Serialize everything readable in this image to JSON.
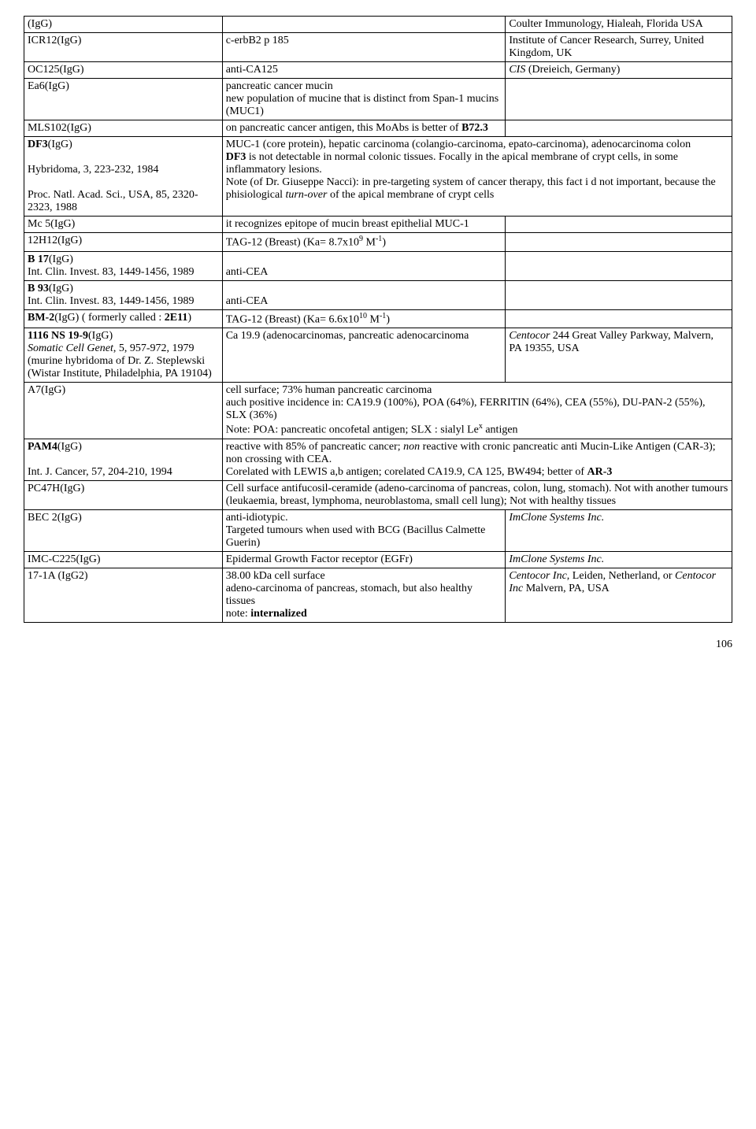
{
  "page_number": "106",
  "rows": [
    {
      "a": "(IgG)",
      "b": "",
      "c": "Coulter Immunology, Hialeah, Florida USA"
    },
    {
      "a": "ICR12(IgG)",
      "b": "c-erbB2 p 185",
      "c": "Institute of Cancer Research, Surrey, United Kingdom, UK"
    },
    {
      "a": "OC125(IgG)",
      "b": "anti-CA125",
      "c_html": "<i>CIS</i> (Dreieich, Germany)"
    },
    {
      "a": "Ea6(IgG)",
      "b": "pancreatic cancer mucin<br>new population of mucine that is distinct from Span-1 mucins (MUC1)",
      "c": ""
    },
    {
      "a": "MLS102(IgG)",
      "b": "on pancreatic cancer antigen, this MoAbs is better of <b>B72.3</b>",
      "c": ""
    },
    {
      "span": true,
      "a_html": "<b>DF3</b>(IgG)<br><br>Hybridoma, 3, 223-232, 1984<br><br>Proc. Natl. Acad. Sci., USA, 85, 2320-2323, 1988",
      "bc_html": "MUC-1 (core protein), hepatic carcinoma (colangio-carcinoma, epato-carcinoma), adenocarcinoma colon<br><b>DF3</b> is not detectable in normal colonic tissues. Focally in the apical membrane of crypt cells, in some inflammatory lesions.<br>Note (of  Dr. Giuseppe Nacci): in pre-targeting system of cancer therapy, this fact i d not important, because the phisiological <i>turn-over</i> of the apical membrane of crypt cells"
    },
    {
      "a": "Mc 5(IgG)",
      "b": "it recognizes epitope of mucin breast  epithelial MUC-1",
      "c": ""
    },
    {
      "a": "12H12(IgG)",
      "b_html": "TAG-12 (Breast) (Ka= 8.7x10<sup>9</sup> M<sup>-1</sup>)",
      "c": ""
    },
    {
      "a_html": "<b>B 17</b>(IgG)<br>Int. Clin. Invest. 83, 1449-1456, 1989",
      "b": "<br>anti-CEA",
      "c": ""
    },
    {
      "a_html": "<b>B 93</b>(IgG)<br>Int. Clin. Invest. 83, 1449-1456, 1989",
      "b": "<br>anti-CEA",
      "c": ""
    },
    {
      "a_html": "<b>BM-2</b>(IgG) ( formerly called : <b>2E11</b>)",
      "b_html": "TAG-12 (Breast) (Ka= 6.6x10<sup>10</sup> M<sup>-1</sup>)",
      "c": ""
    },
    {
      "a_html": "<b>1116 NS 19-9</b>(IgG)<br><i>Somatic Cell Genet</i>, 5, 957-972, 1979 (murine hybridoma of Dr. Z. Steplewski (Wistar Institute, Philadelphia, PA 19104)",
      "b": "Ca 19.9 (adenocarcinomas,  pancreatic adenocarcinoma",
      "c_html": "<i>Centocor</i> 244 Great Valley Parkway, Malvern, PA 19355, USA"
    },
    {
      "span": true,
      "a": "A7(IgG)",
      "bc_html": "cell surface;  73% human pancreatic carcinoma<br>auch positive incidence in: CA19.9 (100%), POA (64%), FERRITIN  (64%), CEA (55%), DU-PAN-2 (55%), SLX (36%)<br>Note: POA: pancreatic oncofetal antigen; SLX : sialyl Le<sup>x</sup> antigen"
    },
    {
      "span": true,
      "a_html": "<b>PAM4</b>(IgG)<br><br>Int. J. Cancer, 57, 204-210, 1994",
      "bc_html": "reactive with 85% of pancreatic cancer; <i>non</i> reactive with  cronic pancreatic anti Mucin-Like Antigen (CAR-3); non crossing with CEA.<br>Corelated with LEWIS a,b antigen; corelated  CA19.9, CA 125, BW494; better of <b>AR-3</b>"
    },
    {
      "span": true,
      "a": "PC47H(IgG)",
      "bc_html": "Cell surface antifucosil-ceramide (adeno-carcinoma of pancreas, colon, lung, stomach). Not with another tumours (leukaemia, breast, lymphoma, neuroblastoma, small cell lung);  Not with healthy tissues"
    },
    {
      "a": "BEC 2(IgG)",
      "b": "anti-idiotypic.<br>Targeted tumours when used with BCG (Bacillus Calmette Guerin)",
      "c_html": "<i>ImClone Systems Inc.</i>"
    },
    {
      "a": "IMC-C225(IgG)",
      "b": "Epidermal Growth Factor receptor (EGFr)",
      "c_html": "<i>ImClone Systems Inc.</i>"
    },
    {
      "a": "17-1A (IgG2)",
      "b_html": "38.00 kDa  cell surface<br>adeno-carcinoma of pancreas, stomach, but also healthy tissues<br>note: <b>internalized</b>",
      "c_html": "<i>Centocor Inc</i>, Leiden, Netherland, or <i>Centocor Inc</i> Malvern, PA, USA"
    }
  ]
}
